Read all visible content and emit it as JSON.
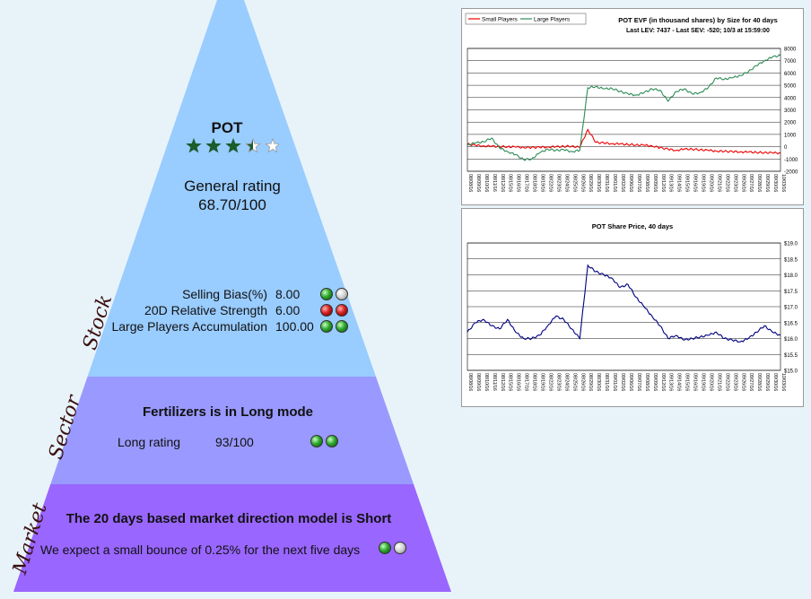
{
  "stock": {
    "side_label": "Stock",
    "ticker": "POT",
    "stars": [
      1,
      1,
      1,
      0.5,
      0
    ],
    "rating_label": "General rating",
    "rating_value": "68.70/100",
    "metrics": [
      {
        "label": "Selling Bias(%)",
        "value": "8.00",
        "signals": [
          "green",
          "gray"
        ]
      },
      {
        "label": "20D Relative Strength",
        "value": "6.00",
        "signals": [
          "red",
          "red"
        ]
      },
      {
        "label": "Large Players Accumulation",
        "value": "100.00",
        "signals": [
          "green",
          "green"
        ]
      }
    ]
  },
  "sector": {
    "side_label": "Sector",
    "headline": "Fertilizers is in Long mode",
    "rating_label": "Long rating",
    "rating_value": "93/100",
    "signals": [
      "green",
      "green"
    ]
  },
  "market": {
    "side_label": "Market",
    "headline": "The 20 days based market direction model is Short",
    "expectation": "We expect a small bounce of 0.25% for the next five days",
    "signals": [
      "green",
      "gray"
    ]
  },
  "colors": {
    "stock_band": "#99ccff",
    "sector_band": "#9999ff",
    "market_band": "#9966ff",
    "small_players": "#ee0000",
    "large_players": "#2e8b57",
    "price_line": "#000080",
    "star_fill": "#1d5c2c"
  },
  "chart_data": [
    {
      "type": "line",
      "title": "POT EVF (in thousand shares) by Size for 40 days",
      "subtitle": "Last LEV: 7437 - Last SEV: -520; 10/3 at 15:59:00",
      "ylim": [
        -2000,
        8000
      ],
      "yticks": [
        "8000",
        "7000",
        "6000",
        "5000",
        "4000",
        "3000",
        "2000",
        "1000",
        "0",
        "-1000",
        "-2000"
      ],
      "x": [
        "08/08/16",
        "08/09/16",
        "08/10/16",
        "08/11/16",
        "08/12/16",
        "08/15/16",
        "08/16/16",
        "08/17/16",
        "08/18/16",
        "08/19/16",
        "08/22/16",
        "08/23/16",
        "08/24/16",
        "08/25/16",
        "08/26/16",
        "08/29/16",
        "08/30/16",
        "08/31/16",
        "09/01/16",
        "09/02/16",
        "09/06/16",
        "09/07/16",
        "09/08/16",
        "09/09/16",
        "09/12/16",
        "09/13/16",
        "09/14/16",
        "09/15/16",
        "09/16/16",
        "09/19/16",
        "09/20/16",
        "09/21/16",
        "09/22/16",
        "09/23/16",
        "09/26/16",
        "09/27/16",
        "09/28/16",
        "09/29/16",
        "09/30/16",
        "10/03/16"
      ],
      "series": [
        {
          "name": "Small Players",
          "values": [
            200,
            120,
            60,
            40,
            10,
            0,
            -30,
            -60,
            -60,
            -50,
            -20,
            -10,
            20,
            40,
            -60,
            1400,
            350,
            300,
            250,
            220,
            180,
            150,
            120,
            60,
            -80,
            -200,
            -300,
            -200,
            -200,
            -250,
            -300,
            -350,
            -380,
            -400,
            -420,
            -440,
            -460,
            -480,
            -500,
            -520
          ]
        },
        {
          "name": "Large Players",
          "values": [
            150,
            300,
            400,
            700,
            -100,
            -400,
            -650,
            -1050,
            -1000,
            -500,
            -200,
            -300,
            -250,
            -400,
            -300,
            4800,
            4900,
            4700,
            4750,
            4500,
            4300,
            4200,
            4400,
            4700,
            4600,
            3700,
            4500,
            4700,
            4300,
            4400,
            4800,
            5600,
            5500,
            5600,
            5800,
            6100,
            6600,
            7000,
            7300,
            7437
          ]
        }
      ]
    },
    {
      "type": "line",
      "title": "POT Share Price, 40 days",
      "ylim": [
        15.0,
        19.0
      ],
      "yticks": [
        "$19.0",
        "$18.5",
        "$18.0",
        "$17.5",
        "$17.0",
        "$16.5",
        "$16.0",
        "$15.5",
        "$15.0"
      ],
      "x": [
        "08/08/16",
        "08/09/16",
        "08/10/16",
        "08/11/16",
        "08/12/16",
        "08/15/16",
        "08/16/16",
        "08/17/16",
        "08/18/16",
        "08/19/16",
        "08/22/16",
        "08/23/16",
        "08/24/16",
        "08/25/16",
        "08/26/16",
        "08/29/16",
        "08/30/16",
        "08/31/16",
        "09/01/16",
        "09/02/16",
        "09/06/16",
        "09/07/16",
        "09/08/16",
        "09/09/16",
        "09/12/16",
        "09/13/16",
        "09/14/16",
        "09/15/16",
        "09/16/16",
        "09/19/16",
        "09/20/16",
        "09/21/16",
        "09/22/16",
        "09/23/16",
        "09/26/16",
        "09/27/16",
        "09/28/16",
        "09/29/16",
        "09/30/16",
        "10/03/16"
      ],
      "series": [
        {
          "name": "",
          "values": [
            16.2,
            16.5,
            16.6,
            16.4,
            16.3,
            16.6,
            16.2,
            16.0,
            16.0,
            16.1,
            16.4,
            16.7,
            16.6,
            16.3,
            16.0,
            18.3,
            18.1,
            18.0,
            17.9,
            17.6,
            17.7,
            17.3,
            17.0,
            16.7,
            16.4,
            16.0,
            16.1,
            15.95,
            16.0,
            16.05,
            16.1,
            16.2,
            16.0,
            15.95,
            15.9,
            16.0,
            16.2,
            16.4,
            16.2,
            16.1
          ]
        }
      ]
    }
  ]
}
